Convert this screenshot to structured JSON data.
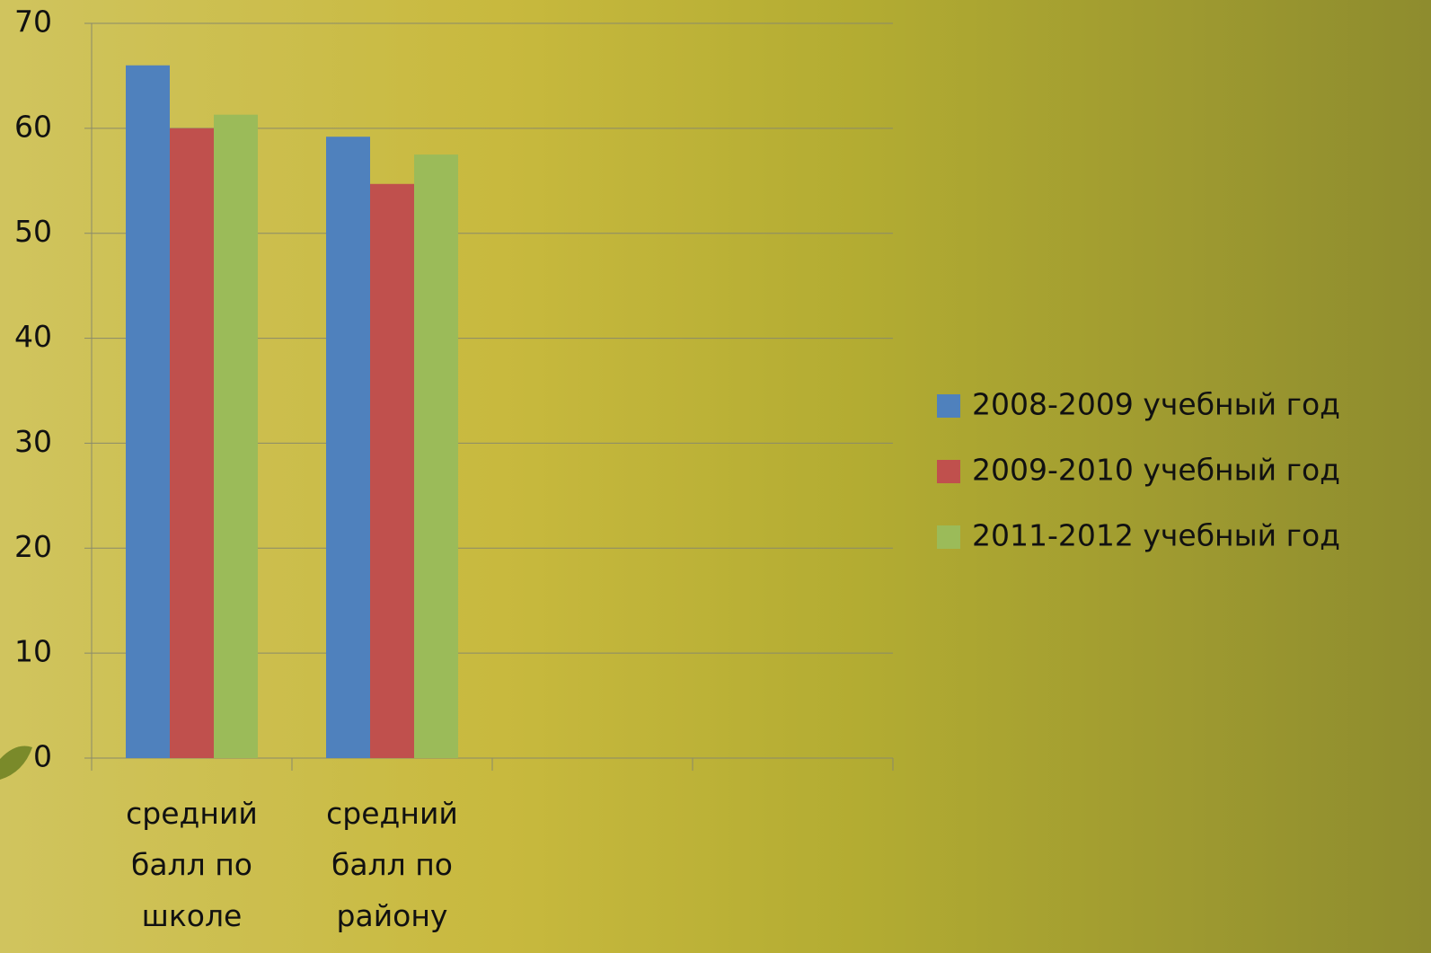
{
  "chart_data": {
    "type": "bar",
    "categories": [
      "средний балл по школе",
      "средний балл по району",
      null,
      null
    ],
    "series": [
      {
        "name": "2008-2009 учебный год",
        "color": "#4f81bd",
        "values": [
          66,
          59.2,
          null,
          null
        ]
      },
      {
        "name": "2009-2010 учебный год",
        "color": "#c0504d",
        "values": [
          60,
          54.7,
          null,
          null
        ]
      },
      {
        "name": "2011-2012 учебный год",
        "color": "#9bbb59",
        "values": [
          61.3,
          57.5,
          null,
          null
        ]
      }
    ],
    "ylim": [
      0,
      70
    ],
    "yticks": [
      0,
      10,
      20,
      30,
      40,
      50,
      60,
      70
    ],
    "grid": true,
    "legend": "right"
  }
}
